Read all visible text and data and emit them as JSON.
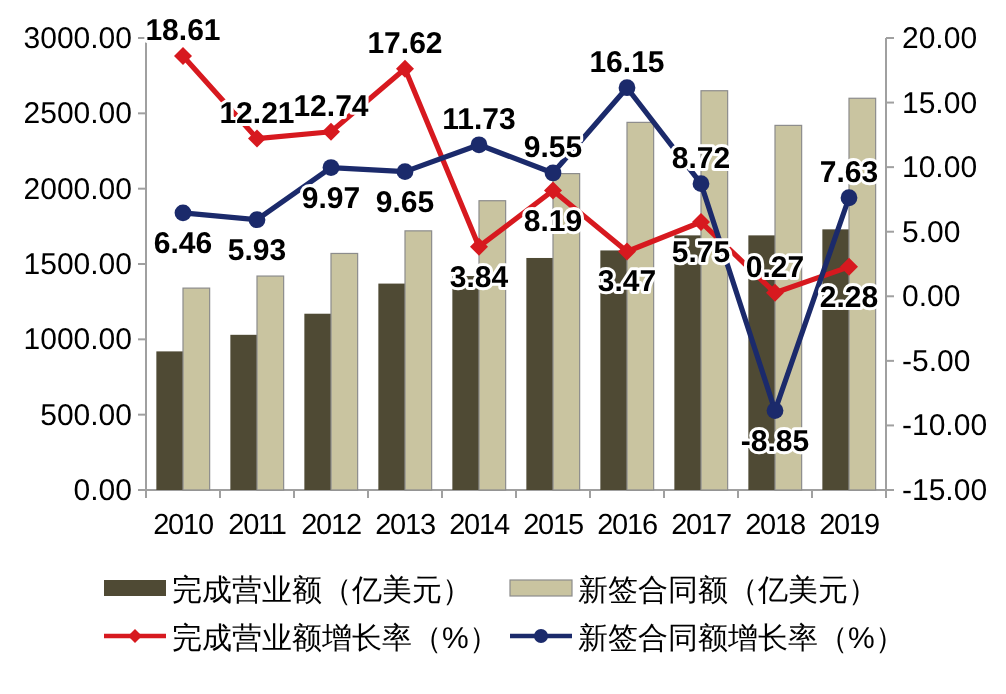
{
  "chart_data": {
    "type": "bar",
    "categories": [
      "2010",
      "2011",
      "2012",
      "2013",
      "2014",
      "2015",
      "2016",
      "2017",
      "2018",
      "2019"
    ],
    "series": [
      {
        "name": "完成营业额（亿美元）",
        "color": "#4f4a34",
        "values": [
          920,
          1030,
          1170,
          1370,
          1420,
          1540,
          1590,
          1690,
          1690,
          1730
        ]
      },
      {
        "name": "新签合同额（亿美元）",
        "color": "#c9c4a0",
        "values": [
          1340,
          1420,
          1570,
          1720,
          1920,
          2100,
          2440,
          2650,
          2420,
          2600
        ]
      },
      {
        "name": "完成营业额增长率（%）",
        "type": "line",
        "axis": "y2",
        "color": "#d7191f",
        "marker": "diamond",
        "values": [
          18.61,
          12.21,
          12.74,
          17.62,
          3.84,
          8.19,
          3.47,
          5.75,
          0.27,
          2.28
        ],
        "value_labels": [
          "18.61",
          "12.21",
          "12.74",
          "17.62",
          "3.84",
          "8.19",
          "3.47",
          "5.75",
          "0.27",
          "2.28"
        ]
      },
      {
        "name": "新签合同额增长率（%）",
        "type": "line",
        "axis": "y2",
        "color": "#1b2a6b",
        "marker": "circle",
        "values": [
          6.46,
          5.93,
          9.97,
          9.65,
          11.73,
          9.55,
          16.15,
          8.72,
          -8.85,
          7.63
        ],
        "value_labels": [
          "6.46",
          "5.93",
          "9.97",
          "9.65",
          "11.73",
          "9.55",
          "16.15",
          "8.72",
          "-8.85",
          "7.63"
        ]
      }
    ],
    "ylim": [
      0,
      3000
    ],
    "yticks": [
      {
        "value": 0,
        "label": "0.00"
      },
      {
        "value": 500,
        "label": "500.00"
      },
      {
        "value": 1000,
        "label": "1000.00"
      },
      {
        "value": 1500,
        "label": "1500.00"
      },
      {
        "value": 2000,
        "label": "2000.00"
      },
      {
        "value": 2500,
        "label": "2500.00"
      },
      {
        "value": 3000,
        "label": "3000.00"
      }
    ],
    "y2lim": [
      -15,
      20
    ],
    "y2ticks": [
      {
        "value": -15,
        "label": "-15.00"
      },
      {
        "value": -10,
        "label": "-10.00"
      },
      {
        "value": -5,
        "label": "-5.00"
      },
      {
        "value": 0,
        "label": "0.00"
      },
      {
        "value": 5,
        "label": "5.00"
      },
      {
        "value": 10,
        "label": "10.00"
      },
      {
        "value": 15,
        "label": "15.00"
      },
      {
        "value": 20,
        "label": "20.00"
      }
    ],
    "legend": "bottom"
  }
}
